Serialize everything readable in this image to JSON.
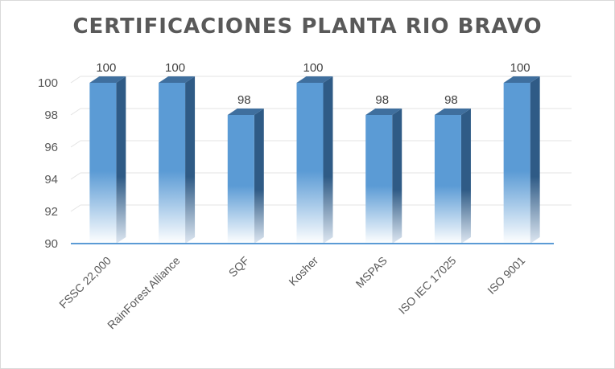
{
  "chart_data": {
    "type": "bar",
    "title": "CERTIFICACIONES  PLANTA RIO BRAVO",
    "categories": [
      "FSSC 22,000",
      "RainForest Alliance",
      "SQF",
      "Kosher",
      "MSPAS",
      "ISO IEC 17025",
      "ISO 9001"
    ],
    "values": [
      100,
      100,
      98,
      100,
      98,
      98,
      100
    ],
    "data_labels": [
      "100",
      "100",
      "98",
      "100",
      "98",
      "98",
      "100"
    ],
    "xlabel": "",
    "ylabel": "",
    "ylim": [
      90,
      100
    ],
    "yticks": [
      "90",
      "92",
      "94",
      "96",
      "98",
      "100"
    ],
    "grid": true,
    "legend": "none",
    "style": "3d-column",
    "colors": {
      "bar_front_top": "#5b9bd5",
      "bar_front_bottom": "#ffffff",
      "bar_side": "#2f5b86",
      "bar_top": "#3f6f9e",
      "gridline": "#e3e3e3",
      "baseline": "#5b9bd5",
      "text": "#595959"
    }
  }
}
